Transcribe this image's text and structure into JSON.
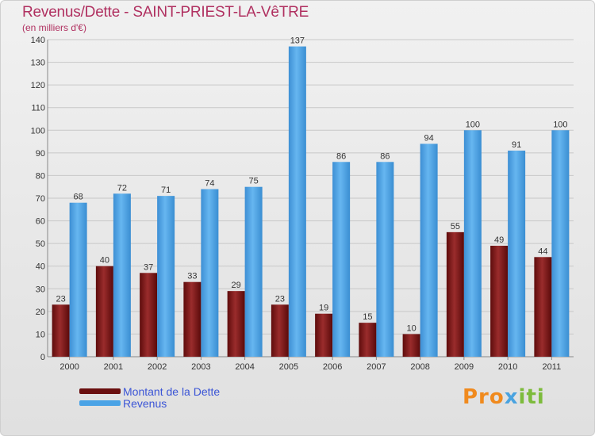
{
  "header": {
    "title": "Revenus/Dette - SAINT-PRIEST-LA-VêTRE",
    "subtitle": "(en milliers d'€)"
  },
  "logo": {
    "text_a": "Pro",
    "text_b": "x",
    "text_c": "iti"
  },
  "chart_data": {
    "type": "bar",
    "title": "Revenus/Dette - SAINT-PRIEST-LA-VêTRE",
    "ylabel": "(en milliers d'€)",
    "xlabel": "",
    "ylim": [
      0,
      140
    ],
    "yticks": [
      0,
      10,
      20,
      30,
      40,
      50,
      60,
      70,
      80,
      90,
      100,
      110,
      120,
      130,
      140
    ],
    "grid": true,
    "legend": "bottom-left",
    "categories": [
      "2000",
      "2001",
      "2002",
      "2003",
      "2004",
      "2005",
      "2006",
      "2007",
      "2008",
      "2009",
      "2010",
      "2011"
    ],
    "series": [
      {
        "name": "Montant de la Dette",
        "color": "#8b1a1a",
        "values": [
          23,
          40,
          37,
          33,
          29,
          23,
          19,
          15,
          10,
          55,
          49,
          44
        ]
      },
      {
        "name": "Revenus",
        "color": "#4aa3e6",
        "values": [
          68,
          72,
          71,
          74,
          75,
          137,
          86,
          86,
          94,
          100,
          91,
          100
        ]
      }
    ]
  }
}
